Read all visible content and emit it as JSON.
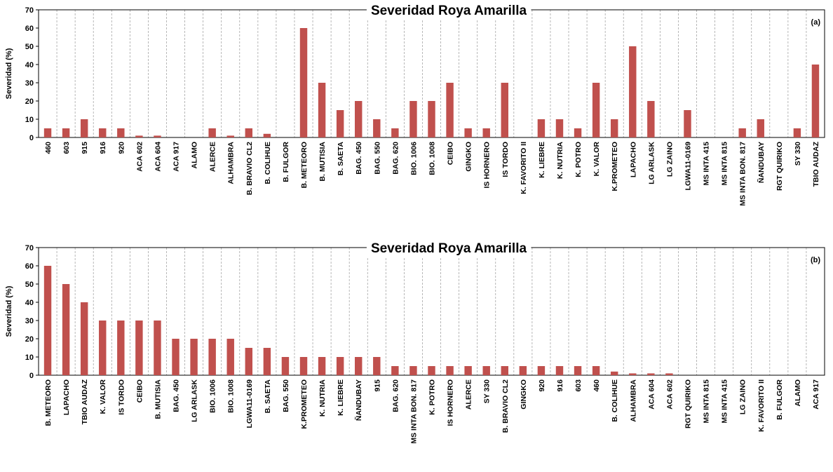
{
  "chart_data": [
    {
      "type": "bar",
      "panel_label": "(a)",
      "title": "Severidad Roya Amarilla",
      "xlabel": "",
      "ylabel": "Severidad (%)",
      "ylim": [
        0,
        70
      ],
      "yticks": [
        0,
        10,
        20,
        30,
        40,
        50,
        60,
        70
      ],
      "grid": "vertical dashed",
      "bar_color": "#c0504d",
      "categories": [
        "460",
        "603",
        "915",
        "916",
        "920",
        "ACA 602",
        "ACA 604",
        "ACA 917",
        "ALAMO",
        "ALERCE",
        "ALHAMBRA",
        "B. BRAVIO CL2",
        "B. COLIHUE",
        "B. FULGOR",
        "B. METEORO",
        "B. MUTISIA",
        "B. SAETA",
        "BAG. 450",
        "BAG. 550",
        "BAG. 620",
        "BIO. 1006",
        "BIO. 1008",
        "CEIBO",
        "GINGKO",
        "IS HORNERO",
        "IS TORDO",
        "K. FAVORITO II",
        "K. LIEBRE",
        "K. NUTRIA",
        "K. POTRO",
        "K. VALOR",
        "K.PROMETEO",
        "LAPACHO",
        "LG ARLASK",
        "LG ZAINO",
        "LGWA11-0169",
        "MS INTA 415",
        "MS INTA 815",
        "MS INTA BON. 817",
        "ÑANDUBAY",
        "RGT QUIRIKO",
        "SY 330",
        "TBIO AUDAZ"
      ],
      "values": [
        5,
        5,
        10,
        5,
        5,
        1,
        1,
        0,
        0,
        5,
        1,
        5,
        2,
        0,
        60,
        30,
        15,
        20,
        10,
        5,
        20,
        20,
        30,
        5,
        5,
        30,
        0,
        10,
        10,
        5,
        30,
        10,
        50,
        20,
        0,
        15,
        0,
        0,
        5,
        10,
        0,
        5,
        40
      ]
    },
    {
      "type": "bar",
      "panel_label": "(b)",
      "title": "Severidad Roya Amarilla",
      "xlabel": "",
      "ylabel": "Severidad (%)",
      "ylim": [
        0,
        70
      ],
      "yticks": [
        0,
        10,
        20,
        30,
        40,
        50,
        60,
        70
      ],
      "grid": "vertical dashed",
      "bar_color": "#c0504d",
      "categories": [
        "B. METEORO",
        "LAPACHO",
        "TBIO AUDAZ",
        "K. VALOR",
        "IS TORDO",
        "CEIBO",
        "B. MUTISIA",
        "BAG. 450",
        "LG ARLASK",
        "BIO. 1006",
        "BIO. 1008",
        "LGWA11-0169",
        "B. SAETA",
        "BAG. 550",
        "K.PROMETEO",
        "K. NUTRIA",
        "K. LIEBRE",
        "ÑANDUBAY",
        "915",
        "BAG. 620",
        "MS INTA BON. 817",
        "K. POTRO",
        "IS HORNERO",
        "ALERCE",
        "SY 330",
        "B. BRAVIO CL2",
        "GINGKO",
        "920",
        "916",
        "603",
        "460",
        "B. COLIHUE",
        "ALHAMBRA",
        "ACA 604",
        "ACA 602",
        "RGT QUIRIKO",
        "MS INTA 815",
        "MS INTA 415",
        "LG ZAINO",
        "K. FAVORITO II",
        "B. FULGOR",
        "ALAMO",
        "ACA 917"
      ],
      "values": [
        60,
        50,
        40,
        30,
        30,
        30,
        30,
        20,
        20,
        20,
        20,
        15,
        15,
        10,
        10,
        10,
        10,
        10,
        10,
        5,
        5,
        5,
        5,
        5,
        5,
        5,
        5,
        5,
        5,
        5,
        5,
        2,
        1,
        1,
        1,
        0,
        0,
        0,
        0,
        0,
        0,
        0,
        0
      ]
    }
  ]
}
